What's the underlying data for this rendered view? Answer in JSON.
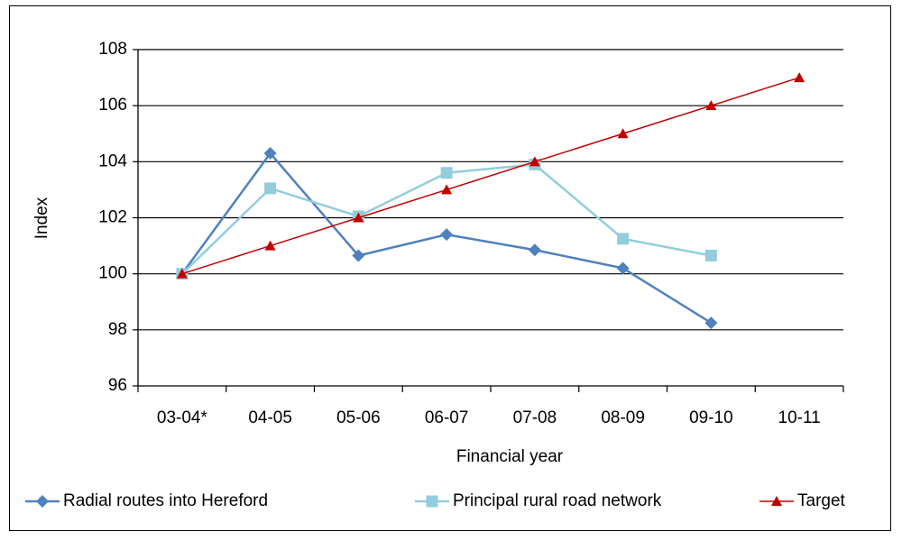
{
  "chart_data": {
    "type": "line",
    "categories": [
      "03-04*",
      "04-05",
      "05-06",
      "06-07",
      "07-08",
      "08-09",
      "09-10",
      "10-11"
    ],
    "series": [
      {
        "name": "Radial routes into Hereford",
        "color": "#4F81BD",
        "marker": "diamond",
        "values": [
          100.0,
          104.3,
          100.65,
          101.4,
          100.85,
          100.2,
          98.25,
          null
        ]
      },
      {
        "name": "Principal rural road network",
        "color": "#93CDDD",
        "marker": "square",
        "values": [
          100.0,
          103.05,
          102.05,
          103.6,
          103.9,
          101.25,
          100.65,
          null
        ]
      },
      {
        "name": "Target",
        "color": "#C00000",
        "marker": "triangle",
        "values": [
          100,
          101,
          102,
          103,
          104,
          105,
          106,
          107
        ]
      }
    ],
    "xlabel": "Financial year",
    "ylabel": "Index",
    "ylim": [
      96,
      108
    ],
    "yticks": [
      96,
      98,
      100,
      102,
      104,
      106,
      108
    ],
    "grid": "horizontal",
    "legend_position": "bottom"
  }
}
